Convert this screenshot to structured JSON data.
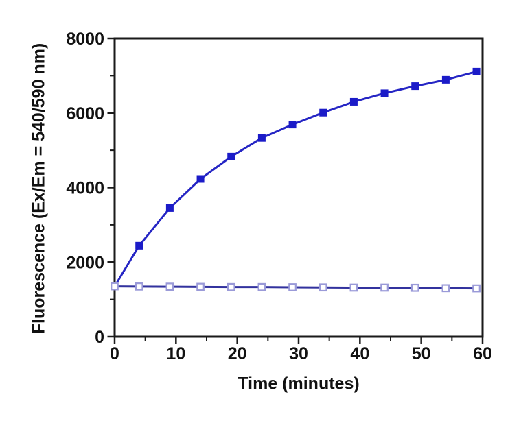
{
  "page": {
    "background_color": "#ffffff",
    "text_color": "#111111",
    "axis_color": "#1a1a1a"
  },
  "chart_data": {
    "type": "line",
    "title": "",
    "xlabel": "Time (minutes)",
    "ylabel": "Fluorescence (Ex/Em = 540/590 nm)",
    "xlim": [
      0,
      60
    ],
    "ylim": [
      0,
      8000
    ],
    "x_major_ticks": [
      0,
      10,
      20,
      30,
      40,
      50,
      60
    ],
    "x_minor_ticks": [
      5,
      15,
      25,
      35,
      45,
      55
    ],
    "y_major_ticks": [
      0,
      2000,
      4000,
      6000,
      8000
    ],
    "y_minor_ticks": [
      1000,
      3000,
      5000,
      7000
    ],
    "grid": false,
    "legend_position": "none",
    "x": [
      0,
      4,
      9,
      14,
      19,
      24,
      29,
      34,
      39,
      44,
      49,
      54,
      59
    ],
    "series": [
      {
        "name": "filled-squares-rising",
        "marker": "filled-square",
        "marker_color": "#1b1bc8",
        "line_color": "#2525c4",
        "values": [
          1350,
          2440,
          3450,
          4230,
          4830,
          5330,
          5690,
          6010,
          6300,
          6530,
          6720,
          6890,
          7110
        ]
      },
      {
        "name": "open-squares-flat",
        "marker": "open-square",
        "marker_color": "#9a9ad8",
        "line_color": "#32329e",
        "values": [
          1350,
          1345,
          1340,
          1335,
          1330,
          1330,
          1325,
          1320,
          1315,
          1315,
          1310,
          1300,
          1295
        ]
      }
    ]
  }
}
